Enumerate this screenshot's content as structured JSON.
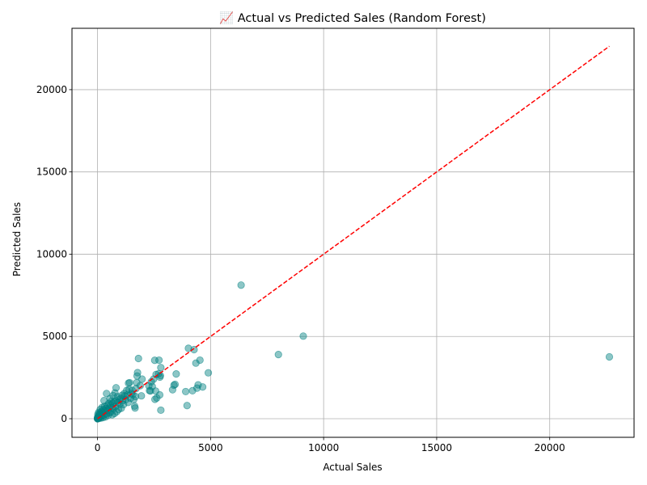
{
  "chart_data": {
    "type": "scatter",
    "title": "📈 Actual vs Predicted Sales (Random Forest)",
    "xlabel": "Actual Sales",
    "ylabel": "Predicted Sales",
    "xlim": [
      -1130,
      23730
    ],
    "ylim": [
      -1130,
      23730
    ],
    "xticks": [
      0,
      5000,
      10000,
      15000,
      20000
    ],
    "yticks": [
      0,
      5000,
      10000,
      15000,
      20000
    ],
    "grid": true,
    "point_color": "#008080",
    "point_alpha": 0.45,
    "reference_line": {
      "from": [
        0,
        0
      ],
      "to": [
        22638,
        22638
      ],
      "color": "#ff0000",
      "style": "dashed"
    },
    "points": [
      [
        22638,
        3760
      ],
      [
        6350,
        8120
      ],
      [
        9100,
        5020
      ],
      [
        8000,
        3900
      ],
      [
        4900,
        2790
      ],
      [
        4650,
        1930
      ],
      [
        4530,
        3560
      ],
      [
        4450,
        2060
      ],
      [
        4400,
        1860
      ],
      [
        4350,
        3380
      ],
      [
        4270,
        4200
      ],
      [
        4200,
        1700
      ],
      [
        4020,
        4280
      ],
      [
        3960,
        800
      ],
      [
        3900,
        1650
      ],
      [
        3480,
        2720
      ],
      [
        3430,
        2090
      ],
      [
        3380,
        2040
      ],
      [
        3320,
        1760
      ],
      [
        2800,
        3110
      ],
      [
        2780,
        2620
      ],
      [
        2760,
        2530
      ],
      [
        2750,
        1450
      ],
      [
        2720,
        3560
      ],
      [
        2700,
        2730
      ],
      [
        2800,
        520
      ],
      [
        2620,
        1260
      ],
      [
        2590,
        2690
      ],
      [
        2570,
        1680
      ],
      [
        2540,
        1180
      ],
      [
        2530,
        3550
      ],
      [
        2480,
        2410
      ],
      [
        2420,
        1960
      ],
      [
        2380,
        2250
      ],
      [
        2340,
        1690
      ],
      [
        2300,
        1710
      ],
      [
        2270,
        2000
      ],
      [
        1970,
        2410
      ],
      [
        1940,
        1390
      ],
      [
        1890,
        2010
      ],
      [
        1810,
        3660
      ],
      [
        1770,
        2800
      ],
      [
        1750,
        2600
      ],
      [
        1730,
        2190
      ],
      [
        1700,
        1830
      ],
      [
        1680,
        1350
      ],
      [
        1660,
        650
      ],
      [
        1640,
        770
      ],
      [
        1600,
        1160
      ],
      [
        1560,
        1460
      ],
      [
        1530,
        1730
      ],
      [
        1500,
        1530
      ],
      [
        1460,
        1240
      ],
      [
        1420,
        2190
      ],
      [
        1400,
        1790
      ],
      [
        1370,
        2160
      ],
      [
        1350,
        990
      ],
      [
        1310,
        1440
      ],
      [
        1290,
        1720
      ],
      [
        1250,
        1160
      ],
      [
        1210,
        1380
      ],
      [
        1180,
        1530
      ],
      [
        1150,
        860
      ],
      [
        1110,
        1090
      ],
      [
        1080,
        1420
      ],
      [
        1050,
        640
      ],
      [
        1020,
        1230
      ],
      [
        990,
        880
      ],
      [
        960,
        1180
      ],
      [
        930,
        560
      ],
      [
        910,
        1010
      ],
      [
        880,
        1340
      ],
      [
        850,
        430
      ],
      [
        820,
        1880
      ],
      [
        810,
        1090
      ],
      [
        790,
        740
      ],
      [
        770,
        1570
      ],
      [
        750,
        320
      ],
      [
        730,
        1020
      ],
      [
        700,
        600
      ],
      [
        690,
        1410
      ],
      [
        670,
        950
      ],
      [
        650,
        240
      ],
      [
        630,
        680
      ],
      [
        610,
        1050
      ],
      [
        590,
        420
      ],
      [
        570,
        830
      ],
      [
        550,
        1230
      ],
      [
        530,
        360
      ],
      [
        510,
        640
      ],
      [
        490,
        920
      ],
      [
        470,
        200
      ],
      [
        450,
        510
      ],
      [
        430,
        800
      ],
      [
        400,
        1530
      ],
      [
        390,
        290
      ],
      [
        370,
        620
      ],
      [
        350,
        110
      ],
      [
        330,
        480
      ],
      [
        310,
        750
      ],
      [
        290,
        1100
      ],
      [
        280,
        230
      ],
      [
        260,
        560
      ],
      [
        240,
        70
      ],
      [
        220,
        390
      ],
      [
        200,
        680
      ],
      [
        185,
        150
      ],
      [
        170,
        430
      ],
      [
        150,
        40
      ],
      [
        140,
        280
      ],
      [
        120,
        560
      ],
      [
        110,
        120
      ],
      [
        95,
        330
      ],
      [
        80,
        30
      ],
      [
        70,
        210
      ],
      [
        60,
        80
      ],
      [
        50,
        380
      ],
      [
        40,
        20
      ],
      [
        30,
        150
      ],
      [
        25,
        60
      ],
      [
        15,
        260
      ],
      [
        10,
        10
      ],
      [
        8,
        90
      ],
      [
        5,
        30
      ],
      [
        2,
        0
      ],
      [
        0,
        0
      ],
      [
        0,
        40
      ]
    ]
  }
}
